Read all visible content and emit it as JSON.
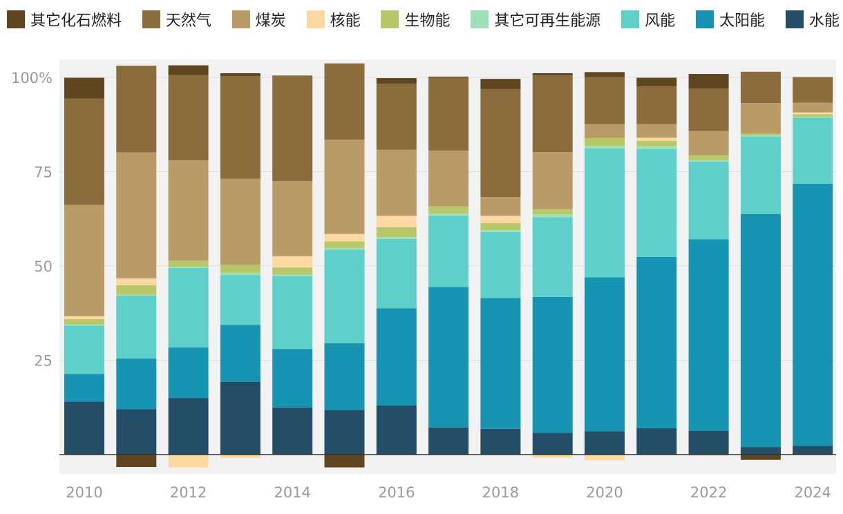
{
  "chart_data": {
    "type": "bar",
    "stacked": true,
    "title": "",
    "xlabel": "",
    "ylabel": "",
    "ylim": [
      -5,
      105
    ],
    "yticks": [
      25,
      50,
      75,
      100
    ],
    "ytick_labels": [
      "25",
      "50",
      "75",
      "100%"
    ],
    "x_tick_labels": [
      "2010",
      "2012",
      "2014",
      "2016",
      "2018",
      "2020",
      "2022",
      "2024"
    ],
    "legend_position": "top",
    "categories": [
      "2010",
      "2011",
      "2012",
      "2013",
      "2014",
      "2015",
      "2016",
      "2017",
      "2018",
      "2019",
      "2020",
      "2021",
      "2022",
      "2023",
      "2024"
    ],
    "series": [
      {
        "name": "水能",
        "color": "#244d67",
        "values": [
          14,
          12,
          15,
          19.3,
          12.5,
          11.8,
          13,
          7.2,
          6.8,
          5.8,
          6.2,
          7,
          6.3,
          2,
          2.3
        ]
      },
      {
        "name": "太阳能",
        "color": "#1794b1",
        "values": [
          7.4,
          13.5,
          13.4,
          15.1,
          15.5,
          17.7,
          25.8,
          37.2,
          34.7,
          36,
          40.8,
          45.4,
          50.8,
          61.8,
          69.5
        ]
      },
      {
        "name": "风能",
        "color": "#5ecfc9",
        "values": [
          12.8,
          16.6,
          21.1,
          13.2,
          19.3,
          24.8,
          18.4,
          18.9,
          17.5,
          21.1,
          34.2,
          28.6,
          20.6,
          20.5,
          17.5
        ]
      },
      {
        "name": "其它可再生能源",
        "color": "#9fdfb5",
        "values": [
          0.3,
          0.3,
          0.3,
          0.6,
          0.5,
          0.5,
          0.5,
          0.6,
          0.5,
          0.8,
          0.6,
          0.8,
          0.3,
          0.4,
          0.3
        ]
      },
      {
        "name": "生物能",
        "color": "#b8c767",
        "values": [
          1.4,
          2.5,
          1.6,
          2.1,
          1.8,
          1.7,
          2.6,
          1.9,
          1.9,
          1.4,
          2.1,
          1.4,
          1.4,
          0.4,
          0.6
        ]
      },
      {
        "name": "核能",
        "color": "#fcd9a1",
        "values": [
          0.8,
          1.8,
          -3.4,
          -0.9,
          3,
          2,
          3,
          0,
          1.9,
          -0.8,
          -1.5,
          0.8,
          -0.3,
          0,
          0.5
        ]
      },
      {
        "name": "煤炭",
        "color": "#b99b68",
        "values": [
          29.5,
          33.4,
          26.6,
          22.8,
          19.9,
          25,
          17.5,
          14.8,
          5,
          15.1,
          3.7,
          3.6,
          6.4,
          8.1,
          2.6
        ]
      },
      {
        "name": "天然气",
        "color": "#8b6d3d",
        "values": [
          28.2,
          23,
          22.6,
          27.2,
          28,
          20.2,
          17.5,
          19.4,
          28.6,
          20.3,
          12.5,
          10,
          11.2,
          8.3,
          6.8
        ]
      },
      {
        "name": "其它化石燃料",
        "color": "#5f4520",
        "values": [
          5.5,
          -3.3,
          2.6,
          0.8,
          0,
          -3.4,
          1.5,
          0.2,
          2.7,
          0.6,
          1.3,
          2.3,
          3.9,
          -1.4,
          0
        ]
      }
    ]
  },
  "legend_order": [
    "其它化石燃料",
    "天然气",
    "煤炭",
    "核能",
    "生物能",
    "其它可再生能源",
    "风能",
    "太阳能",
    "水能"
  ]
}
